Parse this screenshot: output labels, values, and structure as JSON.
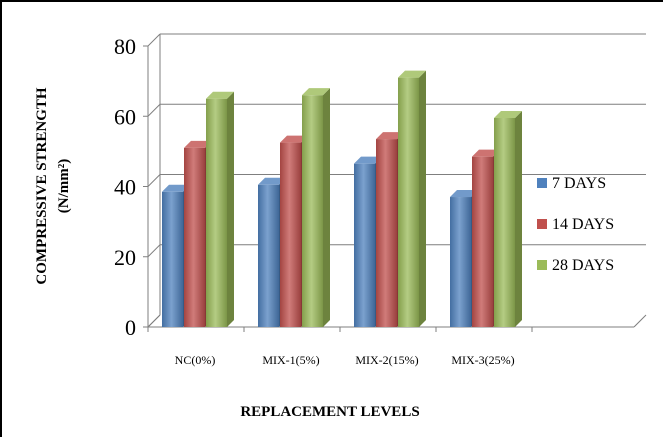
{
  "chart_data": {
    "type": "bar",
    "title": "",
    "xlabel": "REPLACEMENT LEVELS",
    "ylabel_line1": "COMPRESSIVE STRENGTH",
    "ylabel_line2": "(N/mm²)",
    "categories": [
      "NC(0%)",
      "MIX-1(5%)",
      "MIX-2(15%)",
      "MIX-3(25%)"
    ],
    "series": [
      {
        "name": "7 DAYS",
        "values": [
          38.5,
          40.5,
          46.5,
          37
        ],
        "color": "#4f81bd"
      },
      {
        "name": "14 DAYS",
        "values": [
          51,
          52.5,
          53.5,
          48.5
        ],
        "color": "#c0504d"
      },
      {
        "name": "28 DAYS",
        "values": [
          65,
          66,
          71,
          59.5
        ],
        "color": "#9bbb59"
      }
    ],
    "ylim": [
      0,
      80
    ],
    "yticks": [
      "0",
      "20",
      "40",
      "60",
      "80"
    ],
    "grid": true,
    "legend_position": "right"
  }
}
